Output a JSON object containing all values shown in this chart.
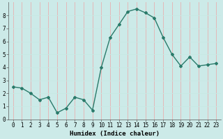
{
  "x": [
    0,
    1,
    2,
    3,
    4,
    5,
    6,
    7,
    8,
    9,
    10,
    11,
    12,
    13,
    14,
    15,
    16,
    17,
    18,
    19,
    20,
    21,
    22,
    23
  ],
  "y": [
    2.5,
    2.4,
    2.0,
    1.5,
    1.7,
    0.5,
    0.85,
    1.7,
    1.5,
    0.7,
    4.0,
    6.3,
    7.3,
    8.3,
    8.5,
    8.2,
    7.8,
    6.3,
    5.0,
    4.1,
    4.8,
    4.1,
    4.2,
    4.3
  ],
  "line_color": "#2a7a6a",
  "marker": "D",
  "marker_size": 2.0,
  "bg_color": "#cceae8",
  "grid_color_major": "#b0d4d0",
  "grid_color_minor": "#f4c0c0",
  "xlabel": "Humidex (Indice chaleur)",
  "xlim": [
    -0.5,
    23.5
  ],
  "ylim": [
    0,
    9
  ],
  "yticks": [
    0,
    1,
    2,
    3,
    4,
    5,
    6,
    7,
    8
  ],
  "xticks": [
    0,
    1,
    2,
    3,
    4,
    5,
    6,
    7,
    8,
    9,
    10,
    11,
    12,
    13,
    14,
    15,
    16,
    17,
    18,
    19,
    20,
    21,
    22,
    23
  ],
  "tick_label_fontsize": 5.5,
  "xlabel_fontsize": 6.5,
  "linewidth": 1.0
}
